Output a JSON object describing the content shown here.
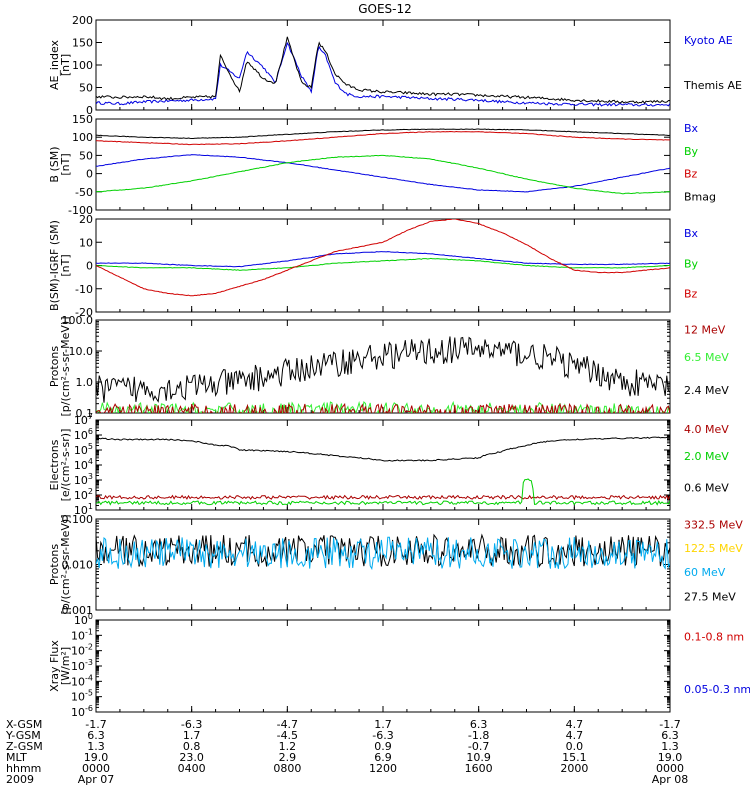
{
  "title": "GOES-12",
  "colors": {
    "black": "#000000",
    "blue": "#0000e0",
    "red": "#d00000",
    "green": "#00d000",
    "lime": "#33ee33",
    "darkred": "#aa0000",
    "cyan": "#00aaee",
    "yellow": "#ffd500"
  },
  "chart_data": [
    {
      "type": "line",
      "panel": "ae",
      "ylabel": [
        "AE_index",
        "[nT]"
      ],
      "ylim": [
        0,
        200
      ],
      "scale": "linear",
      "yticks": [
        "200",
        "150",
        "100",
        "50",
        "0"
      ],
      "legend": [
        {
          "name": "Kyoto AE",
          "color": "blue"
        },
        {
          "name": "Themis AE",
          "color": "black"
        }
      ],
      "series": [
        {
          "name": "Kyoto AE",
          "color": "blue",
          "x": [
            0,
            1,
            2,
            3,
            4,
            5,
            5.2,
            6,
            6.3,
            7,
            7.5,
            8,
            8.6,
            9,
            9.3,
            9.6,
            10,
            10.5,
            11,
            12,
            13,
            14,
            15,
            16,
            17,
            18,
            19,
            20,
            21,
            22,
            23,
            24
          ],
          "y": [
            16,
            14,
            18,
            20,
            22,
            25,
            100,
            70,
            130,
            95,
            60,
            150,
            75,
            40,
            140,
            120,
            60,
            35,
            30,
            30,
            28,
            25,
            24,
            22,
            18,
            16,
            14,
            13,
            12,
            12,
            11,
            12
          ]
        },
        {
          "name": "Themis AE",
          "color": "black",
          "x": [
            0,
            1,
            2,
            3,
            4,
            5,
            5.2,
            6,
            6.3,
            7,
            7.5,
            8,
            8.6,
            9,
            9.3,
            9.6,
            10,
            10.5,
            11,
            12,
            13,
            14,
            15,
            16,
            17,
            18,
            19,
            20,
            21,
            22,
            23,
            24
          ],
          "y": [
            30,
            28,
            30,
            25,
            28,
            30,
            120,
            40,
            110,
            70,
            60,
            160,
            60,
            50,
            150,
            130,
            80,
            55,
            45,
            40,
            38,
            35,
            35,
            33,
            30,
            28,
            25,
            22,
            20,
            18,
            18,
            20
          ]
        }
      ]
    },
    {
      "type": "line",
      "panel": "bsm",
      "ylabel": [
        "B (SM)",
        "[nT]"
      ],
      "ylim": [
        -100,
        150
      ],
      "scale": "linear",
      "yticks": [
        "150",
        "100",
        "50",
        "0",
        "-50",
        "-100"
      ],
      "legend": [
        {
          "name": "Bx",
          "color": "blue"
        },
        {
          "name": "By",
          "color": "green"
        },
        {
          "name": "Bz",
          "color": "red"
        },
        {
          "name": "Bmag",
          "color": "black"
        }
      ],
      "series": [
        {
          "name": "Bx",
          "color": "blue",
          "x": [
            0,
            2,
            4,
            6,
            8,
            10,
            12,
            14,
            16,
            18,
            20,
            22,
            24
          ],
          "y": [
            20,
            40,
            52,
            45,
            30,
            10,
            -10,
            -30,
            -45,
            -50,
            -35,
            -10,
            15
          ]
        },
        {
          "name": "By",
          "color": "green",
          "x": [
            0,
            2,
            4,
            6,
            8,
            10,
            12,
            14,
            16,
            18,
            20,
            22,
            24
          ],
          "y": [
            -50,
            -40,
            -20,
            5,
            30,
            45,
            50,
            40,
            15,
            -15,
            -40,
            -55,
            -50
          ]
        },
        {
          "name": "Bz",
          "color": "red",
          "x": [
            0,
            2,
            4,
            6,
            8,
            10,
            12,
            14,
            16,
            18,
            20,
            22,
            24
          ],
          "y": [
            90,
            85,
            80,
            82,
            90,
            100,
            110,
            115,
            115,
            110,
            100,
            95,
            92
          ]
        },
        {
          "name": "Bmag",
          "color": "black",
          "x": [
            0,
            2,
            4,
            6,
            8,
            10,
            12,
            14,
            16,
            18,
            20,
            22,
            24
          ],
          "y": [
            105,
            100,
            97,
            100,
            108,
            115,
            120,
            122,
            122,
            120,
            115,
            110,
            105
          ]
        }
      ]
    },
    {
      "type": "line",
      "panel": "bgrf",
      "ylabel": [
        "B(SM)-IGRF (SM)",
        "[nT]"
      ],
      "ylim": [
        -20,
        20
      ],
      "scale": "linear",
      "yticks": [
        "20",
        "10",
        "0",
        "-10",
        "-20"
      ],
      "legend": [
        {
          "name": "Bx",
          "color": "blue"
        },
        {
          "name": "By",
          "color": "green"
        },
        {
          "name": "Bz",
          "color": "red"
        }
      ],
      "series": [
        {
          "name": "Bx",
          "color": "blue",
          "x": [
            0,
            2,
            4,
            6,
            8,
            10,
            12,
            14,
            16,
            18,
            20,
            22,
            24
          ],
          "y": [
            1,
            1,
            0,
            -0.5,
            2,
            5,
            6,
            5,
            3,
            1,
            0.5,
            0.5,
            1
          ]
        },
        {
          "name": "By",
          "color": "green",
          "x": [
            0,
            2,
            4,
            6,
            8,
            10,
            12,
            14,
            16,
            18,
            20,
            22,
            24
          ],
          "y": [
            0,
            -1,
            -1,
            -2,
            -1,
            1,
            2,
            3,
            2,
            0,
            -1,
            -1,
            0
          ]
        },
        {
          "name": "Bz",
          "color": "red",
          "x": [
            0,
            1,
            2,
            3,
            4,
            5,
            6,
            7,
            8,
            9,
            10,
            11,
            12,
            13,
            14,
            15,
            16,
            17,
            18,
            19,
            20,
            21,
            22,
            23,
            24
          ],
          "y": [
            0,
            -5,
            -10,
            -12,
            -13,
            -12,
            -9,
            -6,
            -2,
            2,
            6,
            8,
            10,
            15,
            19,
            20,
            18,
            14,
            9,
            3,
            -2,
            -3,
            -3,
            -2,
            -1
          ]
        }
      ]
    },
    {
      "type": "line",
      "panel": "protons1",
      "ylabel": [
        "Protons",
        "[p/(cm²-s-sr-MeV)]"
      ],
      "ylim": [
        0.1,
        100
      ],
      "scale": "log",
      "yticks": [
        "100.0",
        "10.0",
        "1.0",
        "0.1"
      ],
      "legend": [
        {
          "name": "12 MeV",
          "color": "darkred"
        },
        {
          "name": "6.5 MeV",
          "color": "lime"
        },
        {
          "name": "2.4 MeV",
          "color": "black"
        }
      ],
      "series": [
        {
          "name": "2.4 MeV",
          "color": "black",
          "x": [
            0,
            2,
            4,
            6,
            8,
            10,
            12,
            14,
            16,
            18,
            20,
            22,
            24
          ],
          "y": [
            0.6,
            0.6,
            0.7,
            1.0,
            2.0,
            4.0,
            7.0,
            10.0,
            12.0,
            8.0,
            3.0,
            1.0,
            0.7
          ]
        },
        {
          "name": "6.5 MeV",
          "color": "lime",
          "x": [
            0,
            6,
            12,
            18,
            24
          ],
          "y": [
            0.12,
            0.12,
            0.13,
            0.12,
            0.12
          ]
        },
        {
          "name": "12 MeV",
          "color": "darkred",
          "x": [
            0,
            6,
            12,
            18,
            24
          ],
          "y": [
            0.11,
            0.11,
            0.11,
            0.11,
            0.11
          ]
        }
      ]
    },
    {
      "type": "line",
      "panel": "electrons",
      "ylabel": [
        "Electrons",
        "[e/(cm²-s-sr)]"
      ],
      "ylim": [
        10,
        10000000
      ],
      "scale": "log",
      "yticks": [
        "10^7",
        "10^6",
        "10^5",
        "10^4",
        "10^3",
        "10^2",
        "10^1"
      ],
      "legend": [
        {
          "name": "4.0 MeV",
          "color": "darkred"
        },
        {
          "name": "2.0 MeV",
          "color": "green"
        },
        {
          "name": "0.6 MeV",
          "color": "black"
        }
      ],
      "series": [
        {
          "name": "0.6 MeV",
          "color": "black",
          "x": [
            0,
            1,
            2,
            3,
            4,
            5,
            5.5,
            6,
            8,
            10,
            12,
            13,
            14,
            16,
            17,
            18,
            19,
            20,
            22,
            24
          ],
          "y": [
            600000,
            500000,
            500000,
            500000,
            400000,
            200000,
            200000,
            100000,
            80000,
            40000,
            20000,
            20000,
            20000,
            30000,
            80000,
            200000,
            400000,
            500000,
            600000,
            700000
          ]
        },
        {
          "name": "4.0 MeV",
          "color": "darkred",
          "x": [
            0,
            6,
            12,
            18,
            24
          ],
          "y": [
            70,
            70,
            70,
            70,
            70
          ]
        },
        {
          "name": "2.0 MeV",
          "color": "green",
          "x": [
            0,
            6,
            12,
            17.8,
            17.9,
            18.2,
            18.3,
            24
          ],
          "y": [
            30,
            30,
            30,
            30,
            1000,
            1000,
            30,
            30
          ]
        }
      ]
    },
    {
      "type": "line",
      "panel": "protons2",
      "ylabel": [
        "Protons",
        "[p/(cm²-s-sr-MeV)]"
      ],
      "ylim": [
        0.001,
        0.1
      ],
      "scale": "log",
      "yticks": [
        "0.100",
        "0.010",
        "0.001"
      ],
      "legend": [
        {
          "name": "332.5 MeV",
          "color": "darkred"
        },
        {
          "name": "122.5 MeV",
          "color": "yellow"
        },
        {
          "name": "60 MeV",
          "color": "cyan"
        },
        {
          "name": "27.5 MeV",
          "color": "black"
        }
      ],
      "series": [
        {
          "name": "27.5 MeV",
          "color": "black",
          "x": [
            0,
            6,
            12,
            18,
            24
          ],
          "y": [
            0.02,
            0.02,
            0.02,
            0.02,
            0.02
          ]
        },
        {
          "name": "60 MeV",
          "color": "cyan",
          "x": [
            0,
            6,
            12,
            18,
            24
          ],
          "y": [
            0.018,
            0.018,
            0.018,
            0.018,
            0.018
          ]
        }
      ]
    },
    {
      "type": "line",
      "panel": "xray",
      "ylabel": [
        "Xray Flux",
        "[W/m²]"
      ],
      "ylim": [
        1e-06,
        1
      ],
      "scale": "log",
      "yticks": [
        "10^0",
        "10^-1",
        "10^-2",
        "10^-3",
        "10^-4",
        "10^-5",
        "10^-6"
      ],
      "legend": [
        {
          "name": "0.1-0.8 nm",
          "color": "red"
        },
        {
          "name": "0.05-0.3 nm",
          "color": "blue"
        }
      ],
      "series": []
    }
  ],
  "x_axis": {
    "xlim": [
      0,
      24
    ],
    "positions": [
      0,
      4,
      8,
      12,
      16,
      20,
      24
    ],
    "rows": [
      {
        "label": "X-GSM",
        "values": [
          "-1.7",
          "-6.3",
          "-4.7",
          "1.7",
          "6.3",
          "4.7",
          "-1.7"
        ]
      },
      {
        "label": "Y-GSM",
        "values": [
          "6.3",
          "1.7",
          "-4.5",
          "-6.3",
          "-1.8",
          "4.7",
          "6.3"
        ]
      },
      {
        "label": "Z-GSM",
        "values": [
          "1.3",
          "0.8",
          "1.2",
          "0.9",
          "-0.7",
          "0.0",
          "1.3"
        ]
      },
      {
        "label": "MLT",
        "values": [
          "19.0",
          "23.0",
          "2.9",
          "6.9",
          "10.9",
          "15.1",
          "19.0"
        ]
      },
      {
        "label": "hhmm",
        "values": [
          "0000",
          "0400",
          "0800",
          "1200",
          "1600",
          "2000",
          "0000"
        ]
      },
      {
        "label": "2009",
        "values": [
          "Apr 07",
          "",
          "",
          "",
          "",
          "",
          "Apr 08"
        ]
      }
    ]
  }
}
